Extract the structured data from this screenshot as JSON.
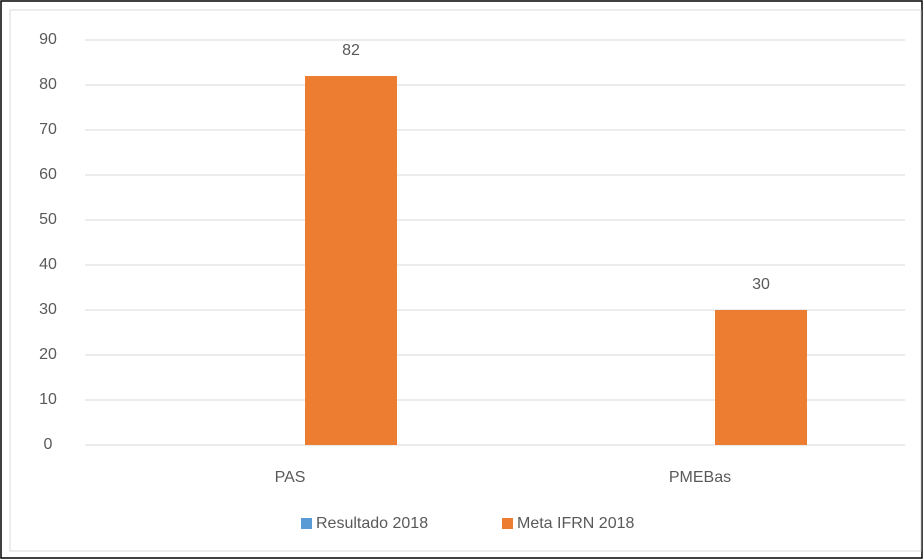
{
  "chart_data": {
    "type": "bar",
    "categories": [
      "PAS",
      "PMEBas"
    ],
    "series": [
      {
        "name": "Resultado 2018",
        "color": "#5b9bd5",
        "values": [
          null,
          null
        ]
      },
      {
        "name": "Meta IFRN 2018",
        "color": "#ed7d31",
        "values": [
          82,
          30
        ]
      }
    ],
    "ylim": [
      0,
      90
    ],
    "yticks": [
      0,
      10,
      20,
      30,
      40,
      50,
      60,
      70,
      80,
      90
    ],
    "grid": true,
    "legend": "bottom"
  }
}
